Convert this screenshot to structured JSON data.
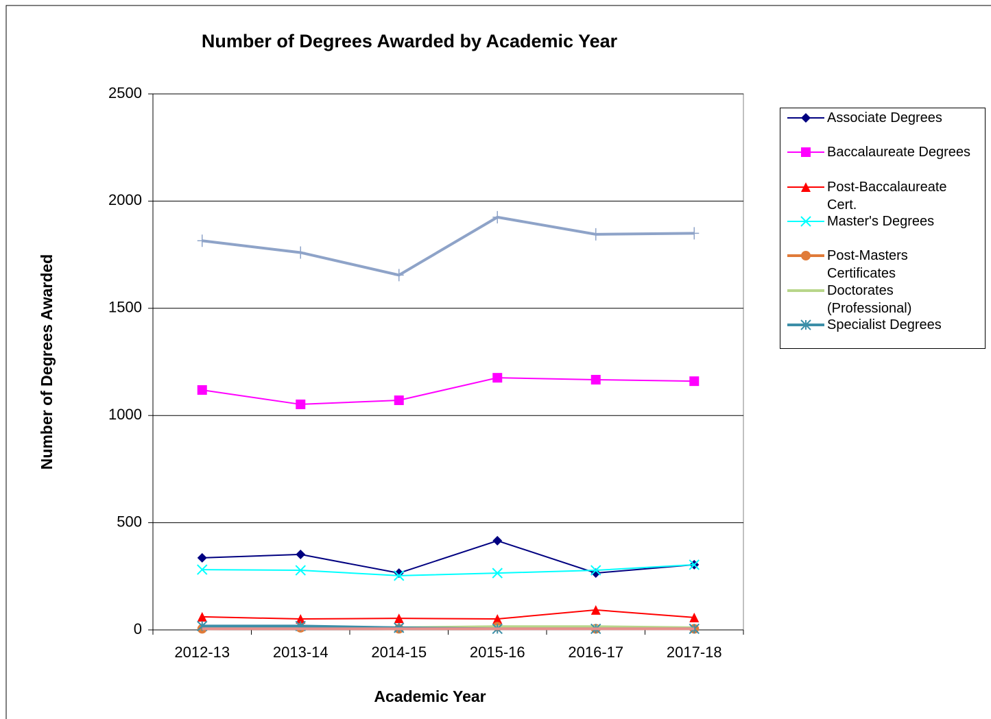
{
  "chart_data": {
    "type": "line",
    "title": "Number of Degrees Awarded by Academic Year",
    "x_label": "Academic Year",
    "y_label": "Number of Degrees Awarded",
    "categories": [
      "2012-13",
      "2013-14",
      "2014-15",
      "2015-16",
      "2016-17",
      "2017-18"
    ],
    "ylim": [
      0,
      2500
    ],
    "yticks": [
      0,
      500,
      1000,
      1500,
      2000,
      2500
    ],
    "grid": true,
    "legend": "right",
    "series": [
      {
        "name": "Associate Degrees",
        "color": "#000080",
        "marker": "diamond",
        "line_width": 2,
        "values": [
          336,
          352,
          265,
          416,
          265,
          304
        ]
      },
      {
        "name": "Baccalaureate Degrees",
        "color": "#ff00ff",
        "marker": "square",
        "line_width": 2,
        "values": [
          1119,
          1052,
          1071,
          1176,
          1167,
          1160
        ]
      },
      {
        "name": "Post-Baccalaureate Cert.",
        "color": "#ff0000",
        "marker": "triangle",
        "line_width": 2,
        "values": [
          61,
          51,
          54,
          51,
          93,
          58
        ]
      },
      {
        "name": "Master's Degrees",
        "color": "#00ffff",
        "marker": "x",
        "line_width": 2,
        "values": [
          281,
          278,
          253,
          265,
          278,
          304
        ]
      },
      {
        "name": "Post-Masters Certificates",
        "color": "#e07b39",
        "marker": "circle",
        "line_width": 4,
        "values": [
          5,
          10,
          5,
          15,
          5,
          5
        ]
      },
      {
        "name": "Doctorates (Professional)",
        "color": "#b8d68a",
        "marker": "none",
        "line_width": 4,
        "values": [
          10,
          15,
          10,
          15,
          15,
          10
        ]
      },
      {
        "name": "Specialist Degrees",
        "color": "#3c8fa8",
        "marker": "asterisk",
        "line_width": 4,
        "values": [
          18,
          18,
          10,
          5,
          5,
          5
        ]
      },
      {
        "color": "#e8908c",
        "marker": "none",
        "line_width": 4,
        "values": [
          5,
          5,
          5,
          5,
          5,
          5
        ]
      },
      {
        "color": "#8ea3c8",
        "marker": "plus",
        "line_width": 4,
        "values": [
          1815,
          1760,
          1655,
          1925,
          1845,
          1850
        ]
      }
    ]
  }
}
